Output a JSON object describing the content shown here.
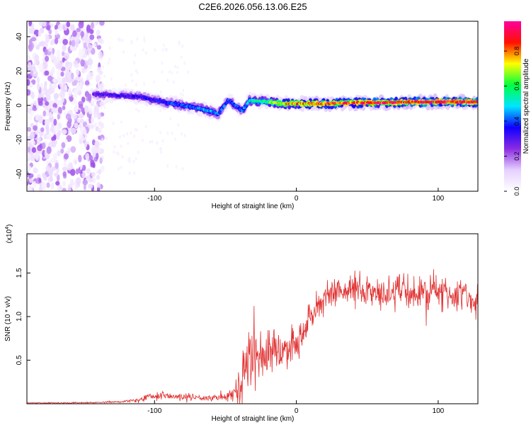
{
  "title": "C2E6.2026.056.13.06.E25",
  "chart_data": [
    {
      "type": "heatmap",
      "panel": "spectrogram",
      "xlabel": "Height of straight line (km)",
      "ylabel": "Frequency (Hz)",
      "xlim": [
        -190,
        128
      ],
      "ylim": [
        -50,
        49
      ],
      "xticks": [
        -100,
        0,
        100
      ],
      "yticks": [
        -40,
        -20,
        0,
        20,
        40
      ],
      "colorbar": {
        "label": "Normalized spectral amplitude",
        "range": [
          0,
          0.97
        ],
        "ticks": [
          "0.0",
          "0.2",
          "0.4",
          "0.6",
          "0.8"
        ],
        "tick_values": [
          0.0,
          0.2,
          0.4,
          0.6,
          0.8
        ],
        "colormap": [
          "#ffffff",
          "#e6d0ff",
          "#8a2be2",
          "#1000ff",
          "#00e5ff",
          "#00ff40",
          "#ffff00",
          "#ff1000",
          "#ff00a0"
        ]
      },
      "noise_region": {
        "x": [
          -190,
          -145
        ],
        "y": [
          -50,
          49
        ],
        "level": 0.12
      },
      "ridge": [
        {
          "x": -143,
          "y": 6.5,
          "a": 0.28
        },
        {
          "x": -130,
          "y": 6,
          "a": 0.3
        },
        {
          "x": -120,
          "y": 5.5,
          "a": 0.32
        },
        {
          "x": -110,
          "y": 5,
          "a": 0.33
        },
        {
          "x": -100,
          "y": 3,
          "a": 0.35
        },
        {
          "x": -90,
          "y": 1.5,
          "a": 0.38
        },
        {
          "x": -80,
          "y": 0,
          "a": 0.4
        },
        {
          "x": -70,
          "y": -1.5,
          "a": 0.42
        },
        {
          "x": -62,
          "y": -3,
          "a": 0.45
        },
        {
          "x": -55,
          "y": -5,
          "a": 0.42
        },
        {
          "x": -48,
          "y": 3,
          "a": 0.38
        },
        {
          "x": -38,
          "y": -3,
          "a": 0.4
        },
        {
          "x": -33,
          "y": 3,
          "a": 0.5
        },
        {
          "x": -20,
          "y": 2,
          "a": 0.6
        },
        {
          "x": -10,
          "y": 1,
          "a": 0.7
        },
        {
          "x": 0,
          "y": 1,
          "a": 0.78
        },
        {
          "x": 20,
          "y": 1,
          "a": 0.82
        },
        {
          "x": 40,
          "y": 1.5,
          "a": 0.85
        },
        {
          "x": 60,
          "y": 1.5,
          "a": 0.86
        },
        {
          "x": 80,
          "y": 2,
          "a": 0.88
        },
        {
          "x": 100,
          "y": 2,
          "a": 0.88
        },
        {
          "x": 128,
          "y": 2,
          "a": 0.88
        }
      ]
    },
    {
      "type": "line",
      "panel": "snr",
      "xlabel": "Height of straight line (km)",
      "ylabel": "SNR (10 * v/v)",
      "scale_label": "(x10",
      "scale_exponent": "4",
      "xlim": [
        -190,
        128
      ],
      "ylim": [
        0,
        1.95
      ],
      "xticks": [
        -100,
        0,
        100
      ],
      "yticks": [
        0.5,
        1.0,
        1.5
      ],
      "ytick_labels": [
        "0.5",
        "1.0",
        "1.5"
      ],
      "color": "#e03030",
      "series": [
        {
          "name": "SNR",
          "x": [
            -190,
            -180,
            -170,
            -160,
            -150,
            -140,
            -130,
            -120,
            -110,
            -105,
            -100,
            -95,
            -90,
            -85,
            -80,
            -75,
            -70,
            -65,
            -60,
            -55,
            -50,
            -45,
            -40,
            -35,
            -30,
            -25,
            -20,
            -15,
            -10,
            -5,
            0,
            5,
            10,
            15,
            20,
            25,
            30,
            35,
            40,
            45,
            50,
            55,
            60,
            65,
            70,
            75,
            80,
            85,
            90,
            95,
            100,
            105,
            110,
            115,
            120,
            128
          ],
          "mean": [
            0.01,
            0.01,
            0.01,
            0.01,
            0.012,
            0.015,
            0.02,
            0.03,
            0.05,
            0.08,
            0.09,
            0.09,
            0.09,
            0.085,
            0.08,
            0.08,
            0.075,
            0.07,
            0.065,
            0.07,
            0.08,
            0.1,
            0.2,
            0.4,
            0.55,
            0.6,
            0.62,
            0.6,
            0.6,
            0.62,
            0.7,
            0.85,
            1.0,
            1.1,
            1.2,
            1.25,
            1.3,
            1.3,
            1.3,
            1.32,
            1.3,
            1.3,
            1.28,
            1.25,
            1.28,
            1.3,
            1.28,
            1.25,
            1.3,
            1.3,
            1.28,
            1.25,
            1.22,
            1.25,
            1.22,
            1.2
          ],
          "spread": [
            0.01,
            0.01,
            0.01,
            0.01,
            0.01,
            0.01,
            0.015,
            0.02,
            0.04,
            0.06,
            0.06,
            0.06,
            0.06,
            0.06,
            0.06,
            0.06,
            0.05,
            0.05,
            0.05,
            0.05,
            0.08,
            0.15,
            0.4,
            0.6,
            0.55,
            0.45,
            0.4,
            0.4,
            0.35,
            0.35,
            0.3,
            0.3,
            0.28,
            0.25,
            0.25,
            0.28,
            0.3,
            0.3,
            0.3,
            0.3,
            0.3,
            0.3,
            0.3,
            0.3,
            0.3,
            0.3,
            0.3,
            0.3,
            0.3,
            0.3,
            0.3,
            0.3,
            0.3,
            0.3,
            0.3,
            0.3
          ],
          "samples": 1100,
          "seed": 7
        }
      ]
    }
  ]
}
